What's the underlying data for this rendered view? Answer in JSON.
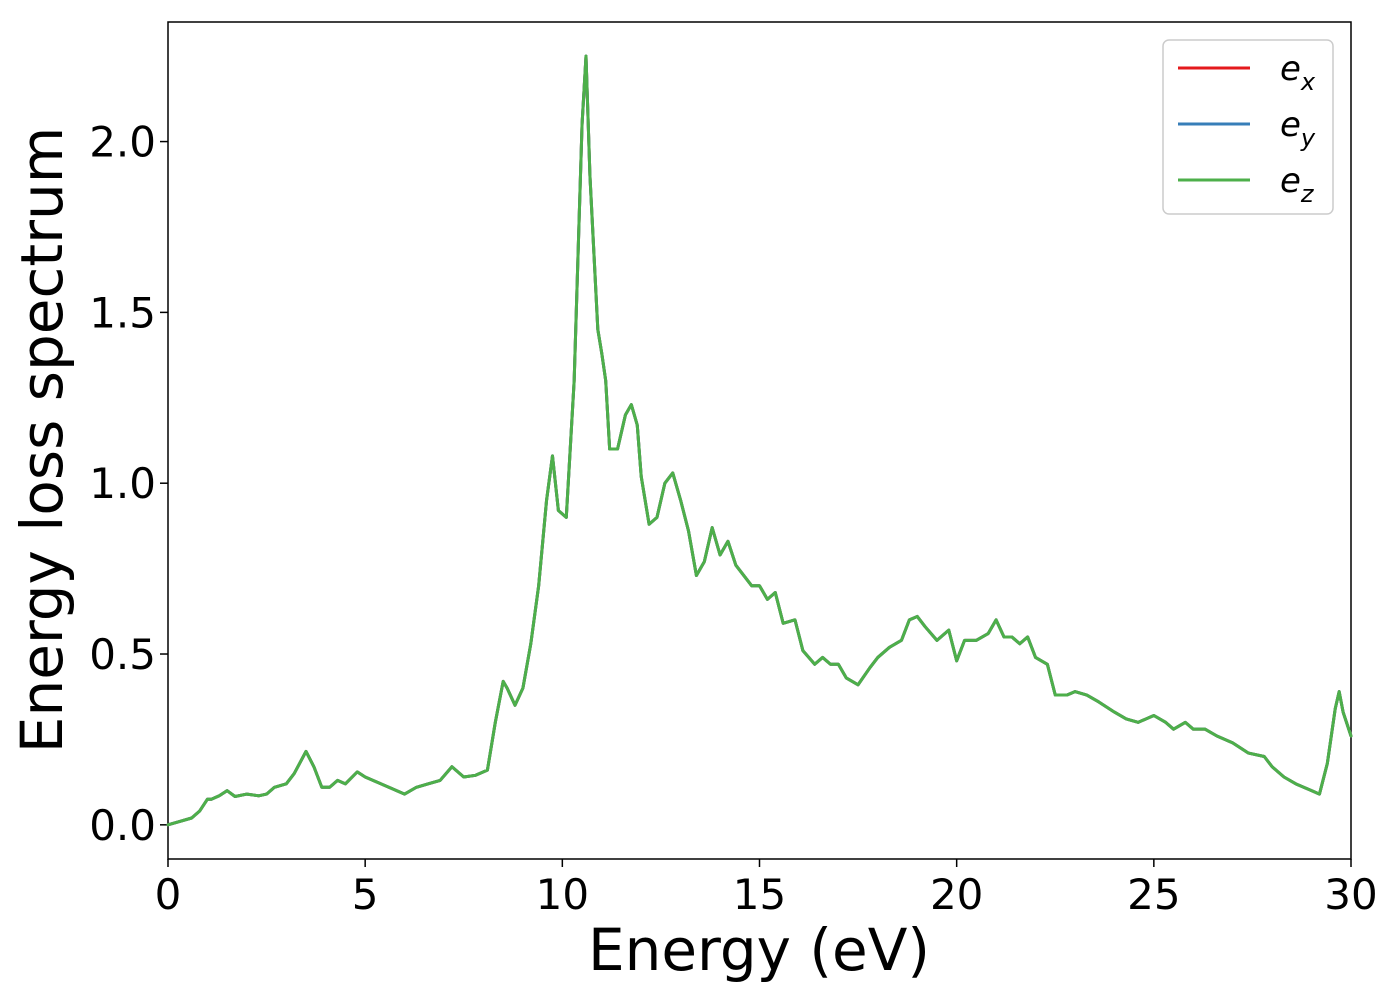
{
  "chart_data": {
    "type": "line",
    "title": "",
    "xlabel": "Energy (eV)",
    "ylabel": "Energy loss spectrum",
    "xlim": [
      0,
      30
    ],
    "ylim": [
      -0.1,
      2.35
    ],
    "xticks": [
      0,
      5,
      10,
      15,
      20,
      25,
      30
    ],
    "xtick_labels": [
      "0",
      "5",
      "10",
      "15",
      "20",
      "25",
      "30"
    ],
    "yticks": [
      0.0,
      0.5,
      1.0,
      1.5,
      2.0
    ],
    "ytick_labels": [
      "0.0",
      "0.5",
      "1.0",
      "1.5",
      "2.0"
    ],
    "grid": false,
    "legend_position": "top-right",
    "series": [
      {
        "name_base": "e",
        "name_sub": "x",
        "color": "#e41a1c",
        "points": "shared"
      },
      {
        "name_base": "e",
        "name_sub": "y",
        "color": "#377eb8",
        "points": "shared"
      },
      {
        "name_base": "e",
        "name_sub": "z",
        "color": "#4daf4a",
        "points": "shared"
      }
    ],
    "x": [
      0,
      0.3,
      0.6,
      0.8,
      1.0,
      1.1,
      1.3,
      1.5,
      1.7,
      2.0,
      2.3,
      2.5,
      2.7,
      3.0,
      3.2,
      3.5,
      3.7,
      3.9,
      4.1,
      4.3,
      4.5,
      4.8,
      5.0,
      5.3,
      5.6,
      6.0,
      6.3,
      6.6,
      6.9,
      7.2,
      7.5,
      7.8,
      8.1,
      8.3,
      8.5,
      8.6,
      8.8,
      9.0,
      9.2,
      9.4,
      9.6,
      9.75,
      9.9,
      10.1,
      10.3,
      10.5,
      10.6,
      10.7,
      10.9,
      11.0,
      11.1,
      11.2,
      11.4,
      11.6,
      11.75,
      11.9,
      12.0,
      12.2,
      12.4,
      12.6,
      12.8,
      13.0,
      13.2,
      13.4,
      13.6,
      13.8,
      14.0,
      14.2,
      14.4,
      14.6,
      14.8,
      15.0,
      15.2,
      15.4,
      15.6,
      15.9,
      16.1,
      16.4,
      16.6,
      16.8,
      17.0,
      17.2,
      17.5,
      17.8,
      18.0,
      18.3,
      18.6,
      18.8,
      19.0,
      19.2,
      19.5,
      19.8,
      20.0,
      20.2,
      20.5,
      20.8,
      21.0,
      21.2,
      21.4,
      21.6,
      21.8,
      22.0,
      22.3,
      22.5,
      22.8,
      23.0,
      23.3,
      23.6,
      24.0,
      24.3,
      24.6,
      25.0,
      25.3,
      25.5,
      25.8,
      26.0,
      26.3,
      26.6,
      27.0,
      27.4,
      27.8,
      28.0,
      28.3,
      28.6,
      29.0,
      29.2,
      29.4,
      29.6,
      29.7,
      29.8,
      30.0
    ],
    "y": [
      0.0,
      0.01,
      0.02,
      0.04,
      0.075,
      0.075,
      0.085,
      0.1,
      0.083,
      0.09,
      0.085,
      0.09,
      0.11,
      0.12,
      0.15,
      0.215,
      0.17,
      0.11,
      0.11,
      0.13,
      0.12,
      0.155,
      0.14,
      0.125,
      0.11,
      0.09,
      0.11,
      0.12,
      0.13,
      0.17,
      0.14,
      0.145,
      0.16,
      0.3,
      0.42,
      0.4,
      0.35,
      0.4,
      0.53,
      0.7,
      0.95,
      1.08,
      0.92,
      0.9,
      1.3,
      2.05,
      2.25,
      1.9,
      1.45,
      1.38,
      1.3,
      1.1,
      1.1,
      1.2,
      1.23,
      1.17,
      1.02,
      0.88,
      0.9,
      1.0,
      1.03,
      0.95,
      0.86,
      0.73,
      0.77,
      0.87,
      0.79,
      0.83,
      0.76,
      0.73,
      0.7,
      0.7,
      0.66,
      0.68,
      0.59,
      0.6,
      0.51,
      0.47,
      0.49,
      0.47,
      0.47,
      0.43,
      0.41,
      0.46,
      0.49,
      0.52,
      0.54,
      0.6,
      0.61,
      0.58,
      0.54,
      0.57,
      0.48,
      0.54,
      0.54,
      0.56,
      0.6,
      0.55,
      0.55,
      0.53,
      0.55,
      0.49,
      0.47,
      0.38,
      0.38,
      0.39,
      0.38,
      0.36,
      0.33,
      0.31,
      0.3,
      0.32,
      0.3,
      0.28,
      0.3,
      0.28,
      0.28,
      0.26,
      0.24,
      0.21,
      0.2,
      0.17,
      0.14,
      0.12,
      0.1,
      0.09,
      0.18,
      0.34,
      0.39,
      0.33,
      0.26
    ]
  }
}
